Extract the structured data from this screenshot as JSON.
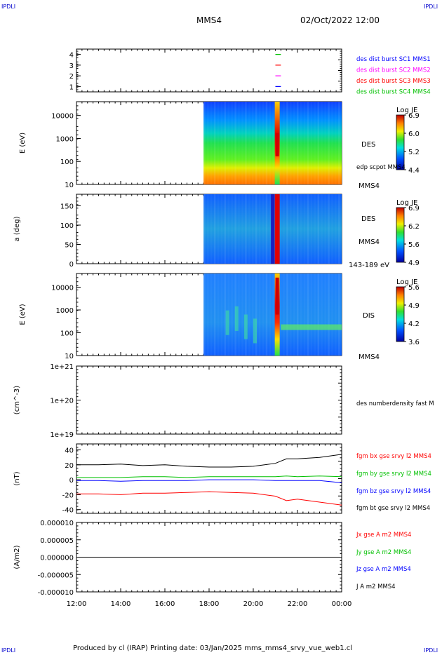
{
  "corners": {
    "tl": "IPDLI",
    "tr": "IPDLI",
    "bl": "IPDLI",
    "br": "IPDLI"
  },
  "header": {
    "spacecraft": "MMS4",
    "datetime": "02/Oct/2022 12:00"
  },
  "footer": "Produced by cl (IRAP)   Printing date: 03/Jan/2025   mms_mms4_srvy_vue_web1.cl",
  "colors": {
    "blue": "#0000ff",
    "magenta": "#ff00ff",
    "red": "#ff0000",
    "green": "#00c000",
    "black": "#000000"
  },
  "chart_data": [
    {
      "type": "scatter",
      "name": "burst",
      "ylim": [
        0.5,
        4.5
      ],
      "y_ticks": [
        "1",
        "2",
        "3",
        "4"
      ],
      "x_ticks": [
        "12:00",
        "14:00",
        "16:00",
        "18:00",
        "20:00",
        "22:00",
        "00:00"
      ],
      "legend": [
        {
          "text": "des dist burst SC1 MMS1",
          "color": "#0000ff"
        },
        {
          "text": "des dist burst SC2 MMS2",
          "color": "#ff00ff"
        },
        {
          "text": "des dist burst SC3 MMS3",
          "color": "#ff0000"
        },
        {
          "text": "des dist burst SC4 MMS4",
          "color": "#00c000"
        }
      ],
      "bursts": [
        {
          "level": 4,
          "start": "21:00",
          "end": "21:15",
          "color": "#00c000"
        },
        {
          "level": 3,
          "start": "21:00",
          "end": "21:15",
          "color": "#ff0000"
        },
        {
          "level": 2,
          "start": "21:00",
          "end": "21:15",
          "color": "#ff00ff"
        },
        {
          "level": 1,
          "start": "21:00",
          "end": "21:15",
          "color": "#0000ff"
        }
      ]
    },
    {
      "type": "heatmap",
      "name": "des-energy",
      "ylabel": "E (eV)",
      "y_ticks": [
        "10",
        "100",
        "1000",
        "10000"
      ],
      "right_labels": [
        "DES",
        "edp scpot MMS4",
        "MMS4"
      ],
      "colorbar": {
        "title": "Log JE",
        "ticks": [
          "6.9",
          "6.0",
          "5.2",
          "4.4"
        ]
      },
      "data_start": "17:45",
      "event_time": "21:05"
    },
    {
      "type": "heatmap",
      "name": "des-pitch",
      "ylabel": "a (deg)",
      "y_ticks": [
        "0",
        "50",
        "100",
        "150"
      ],
      "right_labels": [
        "DES",
        "MMS4",
        "143-189 eV"
      ],
      "colorbar": {
        "title": "Log JE",
        "ticks": [
          "6.9",
          "6.2",
          "5.6",
          "4.9"
        ]
      },
      "data_start": "17:45",
      "event_time": "21:05"
    },
    {
      "type": "heatmap",
      "name": "dis-energy",
      "ylabel": "E (eV)",
      "y_ticks": [
        "10",
        "100",
        "1000",
        "10000"
      ],
      "right_labels": [
        "DIS",
        "MMS4"
      ],
      "colorbar": {
        "title": "Log JE",
        "ticks": [
          "5.6",
          "4.9",
          "4.2",
          "3.6"
        ]
      },
      "data_start": "17:45",
      "event_time": "21:05"
    },
    {
      "type": "line",
      "name": "density",
      "ylabel": "(cm^-3)",
      "y_ticks": [
        "1e+19",
        "1e+20",
        "1e+21"
      ],
      "legend": [
        {
          "text": "des numberdensity fast M",
          "color": "#000000"
        }
      ],
      "series": []
    },
    {
      "type": "line",
      "name": "fgm",
      "ylabel": "(nT)",
      "ylim": [
        -45,
        48
      ],
      "y_ticks": [
        "-40",
        "-20",
        "0",
        "20",
        "40"
      ],
      "x": [
        "12:00",
        "13:00",
        "14:00",
        "15:00",
        "16:00",
        "17:00",
        "18:00",
        "19:00",
        "20:00",
        "21:00",
        "21:30",
        "22:00",
        "23:00",
        "00:00"
      ],
      "series": [
        {
          "name": "fgm bx gse srvy l2 MMS4",
          "color": "#ff0000",
          "values": [
            -19,
            -19,
            -20,
            -18,
            -18,
            -17,
            -16,
            -17,
            -18,
            -22,
            -28,
            -26,
            -30,
            -34
          ]
        },
        {
          "name": "fgm by gse srvy l2 MMS4",
          "color": "#00c000",
          "values": [
            3,
            3,
            3,
            4,
            4,
            3,
            4,
            4,
            4,
            4,
            5,
            4,
            5,
            4
          ]
        },
        {
          "name": "fgm bz gse srvy l2 MMS4",
          "color": "#0000ff",
          "values": [
            -1,
            -1,
            -2,
            -1,
            -1,
            -1,
            0,
            0,
            0,
            -1,
            -1,
            -1,
            -1,
            -4
          ]
        },
        {
          "name": "fgm bt gse srvy l2 MMS4",
          "color": "#000000",
          "values": [
            20,
            20,
            21,
            19,
            20,
            18,
            17,
            17,
            18,
            22,
            28,
            28,
            30,
            34
          ]
        }
      ]
    },
    {
      "type": "line",
      "name": "current",
      "ylabel": "(A/m2)",
      "ylim": [
        -1e-05,
        1e-05
      ],
      "y_ticks": [
        "-0.000010",
        "-0.000005",
        "0.000000",
        "0.000005",
        "0.000010"
      ],
      "series": [
        {
          "name": "Jx gse A m2 MMS4",
          "color": "#ff0000",
          "values": []
        },
        {
          "name": "Jy gse A m2 MMS4",
          "color": "#00c000",
          "values": []
        },
        {
          "name": "Jz gse A m2 MMS4",
          "color": "#0000ff",
          "values": []
        },
        {
          "name": "J A m2 MMS4",
          "color": "#000000",
          "values": [
            0,
            0
          ]
        }
      ]
    }
  ]
}
